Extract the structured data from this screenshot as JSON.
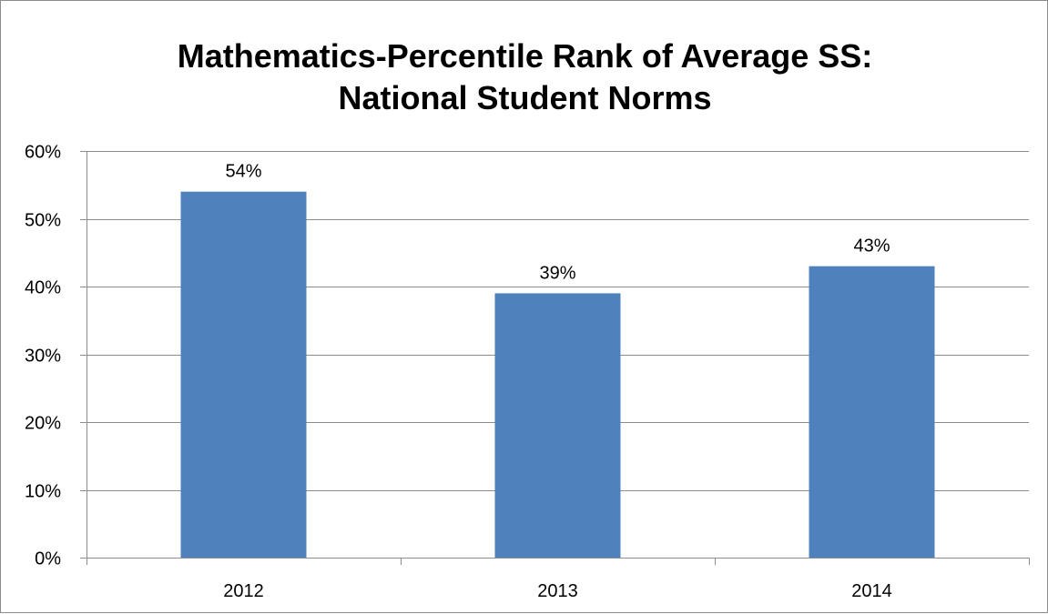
{
  "chart_data": {
    "type": "bar",
    "title_lines": [
      "Mathematics-Percentile Rank of Average SS:",
      "National Student Norms"
    ],
    "categories": [
      "2012",
      "2013",
      "2014"
    ],
    "values": [
      54,
      39,
      43
    ],
    "data_labels": [
      "54%",
      "39%",
      "43%"
    ],
    "ylim": [
      0,
      60
    ],
    "yticks": [
      0,
      10,
      20,
      30,
      40,
      50,
      60
    ],
    "ytick_labels": [
      "0%",
      "10%",
      "20%",
      "30%",
      "40%",
      "50%",
      "60%"
    ],
    "xlabel": "",
    "ylabel": "",
    "grid": true,
    "legend": "none",
    "bar_color": "#4f81bd",
    "gridline_color": "#8c8c8c"
  }
}
